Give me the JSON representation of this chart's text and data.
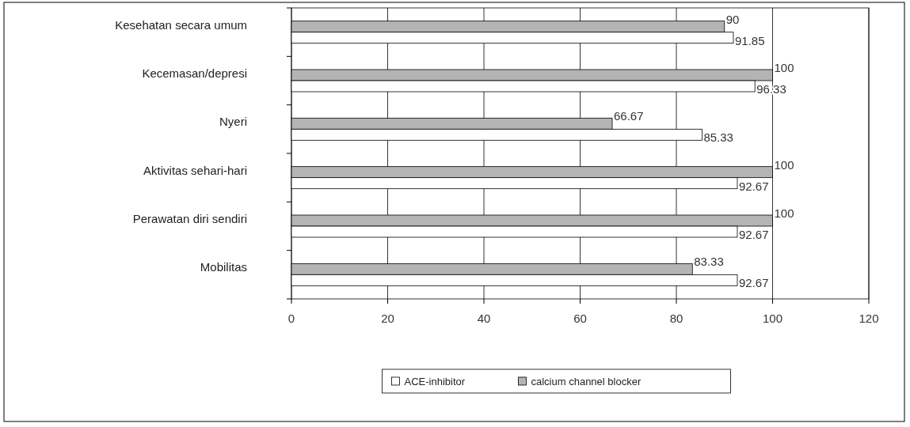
{
  "chart_data": {
    "type": "bar",
    "orientation": "horizontal",
    "categories": [
      "Kesehatan secara umum",
      "Kecemasan/depresi",
      "Nyeri",
      "Aktivitas sehari-hari",
      "Perawatan diri sendiri",
      "Mobilitas"
    ],
    "series": [
      {
        "name": "calcium channel blocker",
        "color": "#b4b4b4",
        "values": [
          90,
          100,
          66.67,
          100,
          100,
          83.33
        ]
      },
      {
        "name": "ACE-inhibitor",
        "color": "#ffffff",
        "values": [
          91.85,
          96.33,
          85.33,
          92.67,
          92.67,
          92.67
        ]
      }
    ],
    "xlim": [
      0,
      120
    ],
    "xticks": [
      0,
      20,
      40,
      60,
      80,
      100,
      120
    ],
    "grid": "x",
    "legend": "bottom",
    "data_labels": true
  }
}
